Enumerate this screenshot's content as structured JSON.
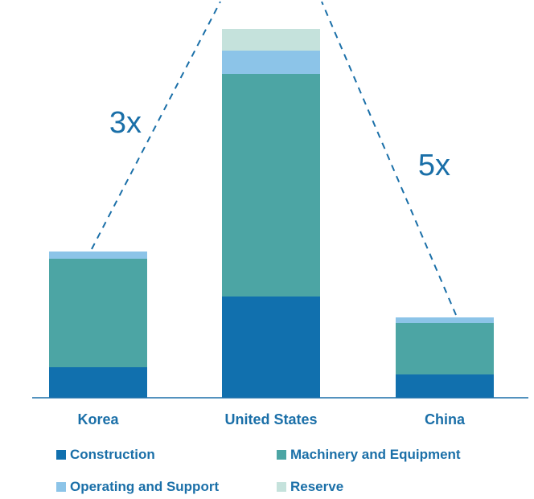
{
  "chart_data": {
    "type": "bar",
    "stacked": true,
    "categories": [
      "Korea",
      "United States",
      "China"
    ],
    "series": [
      {
        "name": "Construction",
        "color": "#1170ae",
        "values": [
          38,
          126,
          29
        ]
      },
      {
        "name": "Machinery and Equipment",
        "color": "#4ca5a4",
        "values": [
          135,
          277,
          64
        ]
      },
      {
        "name": "Operating and Support",
        "color": "#8cc4e8",
        "values": [
          9,
          29,
          7
        ]
      },
      {
        "name": "Reserve",
        "color": "#c5e2dc",
        "values": [
          0,
          27,
          0
        ]
      }
    ],
    "annotations": [
      {
        "text": "3x",
        "from": "Korea",
        "to": "United States"
      },
      {
        "text": "5x",
        "from": "China",
        "to": "United States"
      }
    ],
    "title": "",
    "xlabel": "",
    "ylabel": "",
    "ylim": [
      0,
      490
    ],
    "grid": false,
    "legend_position": "bottom"
  },
  "colors": {
    "text": "#1a6fa8",
    "axis": "#1a6fa8",
    "dash": "#1a6fa8"
  }
}
